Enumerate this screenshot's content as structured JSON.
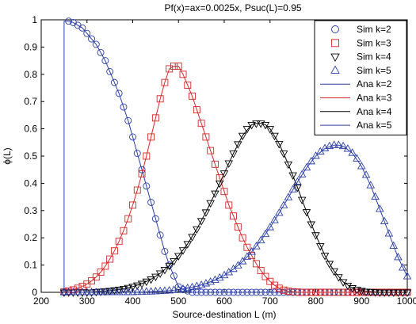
{
  "chart_data": {
    "type": "line",
    "title": "Pf(x)=ax=0.0025x, Psuc(L)=0.95",
    "xlabel": "Source-destination L (m)",
    "ylabel": "ϕ(L)",
    "xlim": [
      200,
      1000
    ],
    "ylim": [
      0,
      1
    ],
    "xticks": [
      200,
      300,
      400,
      500,
      600,
      700,
      800,
      900,
      1000
    ],
    "yticks": [
      0,
      0.1,
      0.2,
      0.3,
      0.4,
      0.5,
      0.6,
      0.7,
      0.8,
      0.9,
      1
    ],
    "grid": false,
    "legend_position": "top-right",
    "series": [
      {
        "name": "Sim k=2",
        "kind": "sim",
        "marker": "circle",
        "color": "#2b3fa8",
        "x": [
          250,
          260,
          270,
          280,
          290,
          300,
          310,
          320,
          330,
          340,
          350,
          360,
          370,
          380,
          390,
          400,
          410,
          420,
          430,
          440,
          450,
          460,
          470,
          480,
          490,
          500,
          510,
          520,
          530,
          540,
          550,
          560,
          570,
          580,
          590,
          600,
          610,
          620,
          630,
          640,
          650,
          660,
          670,
          680,
          690,
          700,
          710,
          720,
          730,
          740,
          750,
          760,
          770,
          780,
          790,
          800,
          810,
          820,
          830,
          840,
          850,
          860,
          870,
          880,
          890,
          900,
          910,
          920,
          930,
          940,
          950,
          960,
          970,
          980,
          990,
          1000
        ],
        "y": [
          0.0,
          0.995,
          0.99,
          0.98,
          0.97,
          0.95,
          0.93,
          0.91,
          0.88,
          0.85,
          0.81,
          0.77,
          0.73,
          0.68,
          0.63,
          0.57,
          0.51,
          0.45,
          0.39,
          0.33,
          0.27,
          0.21,
          0.15,
          0.1,
          0.06,
          0.02,
          0.01,
          0.005,
          0,
          0,
          0,
          0,
          0,
          0,
          0,
          0,
          0,
          0,
          0,
          0,
          0,
          0,
          0,
          0,
          0,
          0,
          0,
          0,
          0,
          0,
          0,
          0,
          0,
          0,
          0,
          0,
          0,
          0,
          0,
          0,
          0,
          0,
          0,
          0,
          0,
          0,
          0,
          0,
          0,
          0,
          0,
          0,
          0,
          0,
          0,
          0
        ]
      },
      {
        "name": "Sim k=3",
        "kind": "sim",
        "marker": "square",
        "color": "#d62728",
        "x": [
          250,
          260,
          270,
          280,
          290,
          300,
          310,
          320,
          330,
          340,
          350,
          360,
          370,
          380,
          390,
          400,
          410,
          420,
          430,
          440,
          450,
          460,
          470,
          480,
          490,
          500,
          510,
          520,
          530,
          540,
          550,
          560,
          570,
          580,
          590,
          600,
          610,
          620,
          630,
          640,
          650,
          660,
          670,
          680,
          690,
          700,
          710,
          720,
          730,
          740,
          750,
          760,
          770,
          780,
          790,
          800,
          810,
          820,
          830,
          840,
          850,
          860,
          870,
          880,
          890,
          900,
          910,
          920,
          930,
          940,
          950,
          960,
          970,
          980,
          990,
          1000
        ],
        "y": [
          0.002,
          0.005,
          0.009,
          0.015,
          0.022,
          0.03,
          0.042,
          0.056,
          0.074,
          0.096,
          0.122,
          0.152,
          0.187,
          0.226,
          0.27,
          0.32,
          0.375,
          0.435,
          0.5,
          0.57,
          0.64,
          0.71,
          0.77,
          0.82,
          0.83,
          0.83,
          0.8,
          0.76,
          0.72,
          0.67,
          0.62,
          0.57,
          0.52,
          0.47,
          0.42,
          0.37,
          0.32,
          0.28,
          0.24,
          0.2,
          0.165,
          0.135,
          0.105,
          0.08,
          0.058,
          0.04,
          0.026,
          0.015,
          0.008,
          0.004,
          0.002,
          0.001,
          0,
          0,
          0,
          0,
          0,
          0,
          0,
          0,
          0,
          0,
          0,
          0,
          0,
          0,
          0,
          0,
          0,
          0,
          0,
          0,
          0,
          0,
          0,
          0
        ]
      },
      {
        "name": "Sim k=4",
        "kind": "sim",
        "marker": "triangle-down",
        "color": "#000000",
        "x": [
          250,
          260,
          270,
          280,
          290,
          300,
          310,
          320,
          330,
          340,
          350,
          360,
          370,
          380,
          390,
          400,
          410,
          420,
          430,
          440,
          450,
          460,
          470,
          480,
          490,
          500,
          510,
          520,
          530,
          540,
          550,
          560,
          570,
          580,
          590,
          600,
          610,
          620,
          630,
          640,
          650,
          660,
          670,
          680,
          690,
          700,
          710,
          720,
          730,
          740,
          750,
          760,
          770,
          780,
          790,
          800,
          810,
          820,
          830,
          840,
          850,
          860,
          870,
          880,
          890,
          900,
          910,
          920,
          930,
          940,
          950,
          960,
          970,
          980,
          990,
          1000
        ],
        "y": [
          0.0,
          0.0,
          0.0,
          0.0,
          0.0,
          0.0,
          0.0,
          0.002,
          0.003,
          0.004,
          0.006,
          0.008,
          0.01,
          0.013,
          0.017,
          0.021,
          0.026,
          0.032,
          0.04,
          0.048,
          0.058,
          0.07,
          0.083,
          0.098,
          0.115,
          0.134,
          0.155,
          0.178,
          0.204,
          0.232,
          0.262,
          0.294,
          0.328,
          0.363,
          0.4,
          0.437,
          0.474,
          0.51,
          0.544,
          0.575,
          0.6,
          0.615,
          0.62,
          0.62,
          0.615,
          0.6,
          0.575,
          0.545,
          0.51,
          0.47,
          0.43,
          0.385,
          0.34,
          0.295,
          0.25,
          0.21,
          0.17,
          0.135,
          0.105,
          0.078,
          0.056,
          0.038,
          0.025,
          0.016,
          0.01,
          0.006,
          0.003,
          0.002,
          0.001,
          0,
          0,
          0,
          0,
          0,
          0,
          0
        ]
      },
      {
        "name": "Sim k=5",
        "kind": "sim",
        "marker": "triangle-up",
        "color": "#2b3fa8",
        "x": [
          250,
          260,
          270,
          280,
          290,
          300,
          310,
          320,
          330,
          340,
          350,
          360,
          370,
          380,
          390,
          400,
          410,
          420,
          430,
          440,
          450,
          460,
          470,
          480,
          490,
          500,
          510,
          520,
          530,
          540,
          550,
          560,
          570,
          580,
          590,
          600,
          610,
          620,
          630,
          640,
          650,
          660,
          670,
          680,
          690,
          700,
          710,
          720,
          730,
          740,
          750,
          760,
          770,
          780,
          790,
          800,
          810,
          820,
          830,
          840,
          850,
          860,
          870,
          880,
          890,
          900,
          910,
          920,
          930,
          940,
          950,
          960,
          970,
          980,
          990,
          1000
        ],
        "y": [
          0,
          0,
          0,
          0,
          0,
          0,
          0,
          0,
          0,
          0,
          0,
          0,
          0,
          0,
          0,
          0,
          0.001,
          0.001,
          0.002,
          0.002,
          0.003,
          0.004,
          0.005,
          0.006,
          0.008,
          0.01,
          0.012,
          0.015,
          0.018,
          0.022,
          0.026,
          0.032,
          0.038,
          0.045,
          0.053,
          0.062,
          0.073,
          0.085,
          0.098,
          0.113,
          0.13,
          0.148,
          0.168,
          0.19,
          0.213,
          0.238,
          0.264,
          0.291,
          0.319,
          0.348,
          0.377,
          0.405,
          0.432,
          0.457,
          0.48,
          0.5,
          0.516,
          0.528,
          0.536,
          0.54,
          0.54,
          0.536,
          0.526,
          0.511,
          0.49,
          0.462,
          0.43,
          0.392,
          0.35,
          0.305,
          0.26,
          0.215,
          0.17,
          0.128,
          0.09,
          0.058
        ]
      },
      {
        "name": "Ana k=2",
        "kind": "ana",
        "color": "#2b3fa8",
        "x": [
          250,
          250,
          260,
          270,
          280,
          290,
          300,
          310,
          320,
          330,
          340,
          350,
          360,
          370,
          380,
          390,
          400,
          410,
          420,
          430,
          440,
          450,
          460,
          470,
          480,
          490,
          500,
          510,
          520,
          530,
          1000
        ],
        "y": [
          0,
          0.995,
          0.995,
          0.99,
          0.98,
          0.97,
          0.95,
          0.93,
          0.91,
          0.88,
          0.85,
          0.81,
          0.77,
          0.73,
          0.68,
          0.63,
          0.57,
          0.51,
          0.45,
          0.39,
          0.33,
          0.27,
          0.21,
          0.15,
          0.1,
          0.06,
          0.02,
          0.01,
          0.005,
          0,
          0
        ]
      },
      {
        "name": "Ana k=3",
        "kind": "ana",
        "color": "#d62728",
        "x": [
          250,
          260,
          270,
          280,
          290,
          300,
          310,
          320,
          330,
          340,
          350,
          360,
          370,
          380,
          390,
          400,
          410,
          420,
          430,
          440,
          450,
          460,
          470,
          480,
          490,
          500,
          510,
          520,
          530,
          540,
          550,
          560,
          570,
          580,
          590,
          600,
          610,
          620,
          630,
          640,
          650,
          660,
          670,
          680,
          690,
          700,
          710,
          720,
          730,
          740,
          750,
          760,
          770,
          780,
          1000
        ],
        "y": [
          0.002,
          0.005,
          0.009,
          0.015,
          0.022,
          0.03,
          0.042,
          0.056,
          0.074,
          0.096,
          0.122,
          0.152,
          0.187,
          0.226,
          0.27,
          0.32,
          0.375,
          0.435,
          0.5,
          0.57,
          0.64,
          0.71,
          0.77,
          0.82,
          0.83,
          0.83,
          0.8,
          0.76,
          0.72,
          0.67,
          0.62,
          0.57,
          0.52,
          0.47,
          0.42,
          0.37,
          0.32,
          0.28,
          0.24,
          0.2,
          0.165,
          0.135,
          0.105,
          0.08,
          0.058,
          0.04,
          0.026,
          0.015,
          0.008,
          0.004,
          0.002,
          0.001,
          0,
          0,
          0
        ]
      },
      {
        "name": "Ana k=4",
        "kind": "ana",
        "color": "#000000",
        "x": [
          250,
          300,
          320,
          340,
          360,
          380,
          400,
          420,
          440,
          460,
          480,
          500,
          520,
          540,
          560,
          580,
          600,
          620,
          640,
          660,
          670,
          680,
          690,
          700,
          720,
          740,
          760,
          780,
          800,
          820,
          840,
          860,
          880,
          900,
          920,
          940,
          1000
        ],
        "y": [
          0,
          0,
          0.002,
          0.004,
          0.008,
          0.013,
          0.021,
          0.032,
          0.048,
          0.07,
          0.098,
          0.134,
          0.178,
          0.232,
          0.294,
          0.363,
          0.437,
          0.51,
          0.575,
          0.615,
          0.62,
          0.62,
          0.615,
          0.6,
          0.545,
          0.47,
          0.385,
          0.295,
          0.21,
          0.135,
          0.078,
          0.038,
          0.016,
          0.006,
          0.002,
          0,
          0
        ]
      },
      {
        "name": "Ana k=5",
        "kind": "ana",
        "color": "#2b3fa8",
        "x": [
          250,
          400,
          420,
          440,
          460,
          480,
          500,
          520,
          540,
          560,
          580,
          600,
          620,
          640,
          660,
          680,
          700,
          720,
          740,
          760,
          780,
          800,
          820,
          840,
          850,
          860,
          880,
          900,
          920,
          940,
          960,
          980,
          1000
        ],
        "y": [
          0,
          0,
          0.001,
          0.002,
          0.004,
          0.006,
          0.01,
          0.015,
          0.022,
          0.032,
          0.045,
          0.062,
          0.085,
          0.113,
          0.148,
          0.19,
          0.238,
          0.291,
          0.348,
          0.405,
          0.457,
          0.5,
          0.528,
          0.54,
          0.54,
          0.536,
          0.511,
          0.462,
          0.392,
          0.305,
          0.215,
          0.128,
          0.058
        ]
      }
    ]
  }
}
